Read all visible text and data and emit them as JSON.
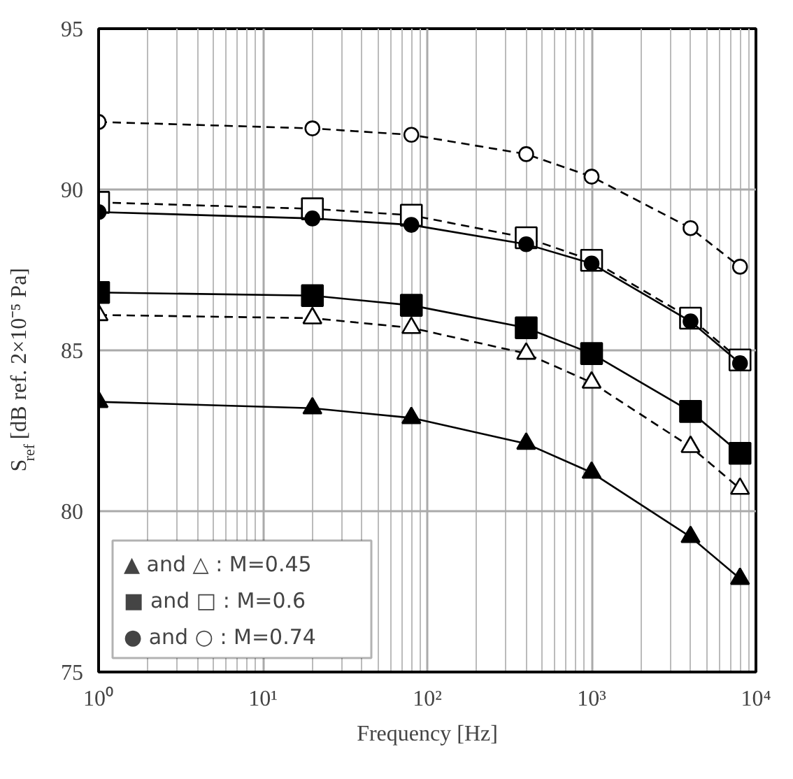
{
  "chart_data": {
    "type": "line",
    "xlabel": "Frequency [Hz]",
    "ylabel": "S$_{ref}$ [dB ref. 2×10⁻⁵ Pa]",
    "x": [
      1,
      20,
      80,
      400,
      1000,
      4000,
      8000
    ],
    "log": "x",
    "xlim": [
      1,
      10000
    ],
    "ylim": [
      75,
      95
    ],
    "xticks": [
      {
        "value": 1,
        "label": "10⁰"
      },
      {
        "value": 10,
        "label": "10¹"
      },
      {
        "value": 100,
        "label": "10²"
      },
      {
        "value": 1000,
        "label": "10³"
      },
      {
        "value": 10000,
        "label": "10⁴"
      }
    ],
    "yticks": [
      75,
      80,
      85,
      90,
      95
    ],
    "grid": true,
    "series": [
      {
        "color": "#000000",
        "marker": "triangle",
        "line_style": "solid",
        "values": [
          83.4,
          83.2,
          82.9,
          82.1,
          81.2,
          79.2,
          77.9
        ]
      },
      {
        "color": "#ffffff",
        "marker": "triangle",
        "line_style": "dashed",
        "values": [
          86.1,
          86.0,
          85.7,
          84.9,
          84.0,
          82.0,
          80.7
        ]
      },
      {
        "color": "#000000",
        "marker": "square",
        "line_style": "solid",
        "values": [
          86.8,
          86.7,
          86.4,
          85.7,
          84.9,
          83.1,
          81.8
        ]
      },
      {
        "color": "#ffffff",
        "marker": "square",
        "line_style": "dashed",
        "values": [
          89.6,
          89.4,
          89.2,
          88.5,
          87.8,
          86.0,
          84.7
        ]
      },
      {
        "color": "#000000",
        "marker": "circle",
        "line_style": "solid",
        "values": [
          89.3,
          89.1,
          88.9,
          88.3,
          87.7,
          85.9,
          84.6
        ]
      },
      {
        "color": "#ffffff",
        "marker": "circle",
        "line_style": "dashed",
        "values": [
          92.1,
          91.9,
          91.7,
          91.1,
          90.4,
          88.8,
          87.6
        ]
      }
    ],
    "annotations": [
      "▲ and △ :  M=0.45",
      "■ and □ :  M=0.6",
      "● and ○ :  M=0.74"
    ]
  }
}
